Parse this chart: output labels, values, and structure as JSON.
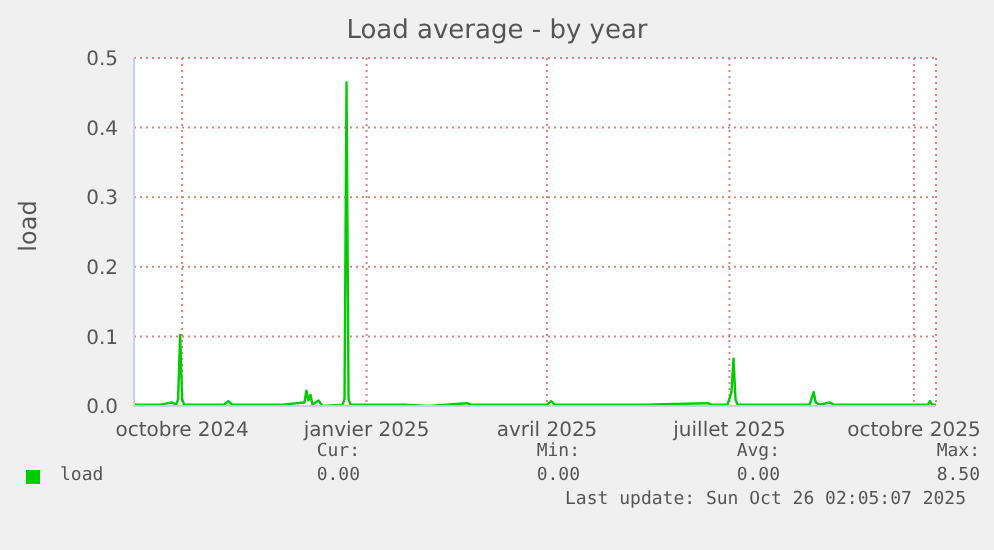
{
  "chart_data": {
    "type": "line",
    "title": "Load average - by year",
    "ylabel": "load",
    "x": [
      "2024-09-07",
      "2024-09-20",
      "2024-09-26",
      "2024-09-28",
      "2024-09-29",
      "2024-09-30",
      "2024-10-01",
      "2024-10-02",
      "2024-10-22",
      "2024-10-24",
      "2024-10-26",
      "2024-11-20",
      "2024-12-01",
      "2024-12-02",
      "2024-12-03",
      "2024-12-04",
      "2024-12-05",
      "2024-12-08",
      "2024-12-10",
      "2024-12-20",
      "2024-12-21",
      "2024-12-22",
      "2024-12-23",
      "2024-12-24",
      "2025-01-20",
      "2025-02-01",
      "2025-02-20",
      "2025-02-22",
      "2025-04-01",
      "2025-04-03",
      "2025-04-05",
      "2025-05-20",
      "2025-06-20",
      "2025-06-22",
      "2025-06-30",
      "2025-07-02",
      "2025-07-03",
      "2025-07-04",
      "2025-07-05",
      "2025-08-10",
      "2025-08-12",
      "2025-08-13",
      "2025-08-15",
      "2025-08-20",
      "2025-08-22",
      "2025-09-25",
      "2025-10-08",
      "2025-10-09",
      "2025-10-10",
      "2025-10-12"
    ],
    "series": [
      {
        "name": "load",
        "color": "#00cc00",
        "values": [
          0.002,
          0.002,
          0.005,
          0.002,
          0.01,
          0.102,
          0.01,
          0.002,
          0.002,
          0.007,
          0.002,
          0.002,
          0.005,
          0.022,
          0.008,
          0.016,
          0.002,
          0.008,
          0.0,
          0.002,
          0.01,
          0.465,
          0.01,
          0.002,
          0.002,
          0.0,
          0.004,
          0.002,
          0.002,
          0.007,
          0.002,
          0.002,
          0.004,
          0.002,
          0.002,
          0.02,
          0.068,
          0.01,
          0.002,
          0.002,
          0.02,
          0.005,
          0.002,
          0.005,
          0.002,
          0.002,
          0.002,
          0.007,
          0.002,
          0.002
        ]
      }
    ],
    "xlim": [
      "2024-09-07",
      "2025-10-12"
    ],
    "xticks": [
      {
        "value": "2024-10-01",
        "label": "octobre 2024"
      },
      {
        "value": "2025-01-01",
        "label": "janvier 2025"
      },
      {
        "value": "2025-04-01",
        "label": "avril 2025"
      },
      {
        "value": "2025-07-01",
        "label": "juillet 2025"
      },
      {
        "value": "2025-10-01",
        "label": "octobre 2025"
      }
    ],
    "ylim": [
      0,
      0.5
    ],
    "yticks": [
      {
        "value": 0,
        "label": "0.0"
      },
      {
        "value": 0.1,
        "label": "0.1"
      },
      {
        "value": 0.2,
        "label": "0.2"
      },
      {
        "value": 0.3,
        "label": "0.3"
      },
      {
        "value": 0.4,
        "label": "0.4"
      },
      {
        "value": 0.5,
        "label": "0.5"
      }
    ],
    "grid": true,
    "legend": "bottom left",
    "marker": "none",
    "line_style": "solid",
    "annotations": [
      "Cur:",
      "0.00",
      "Min:",
      "0.00",
      "Avg:",
      "0.00",
      "Max:",
      "8.50",
      "Last update: Sun Oct 26 02:05:07 2025"
    ]
  }
}
